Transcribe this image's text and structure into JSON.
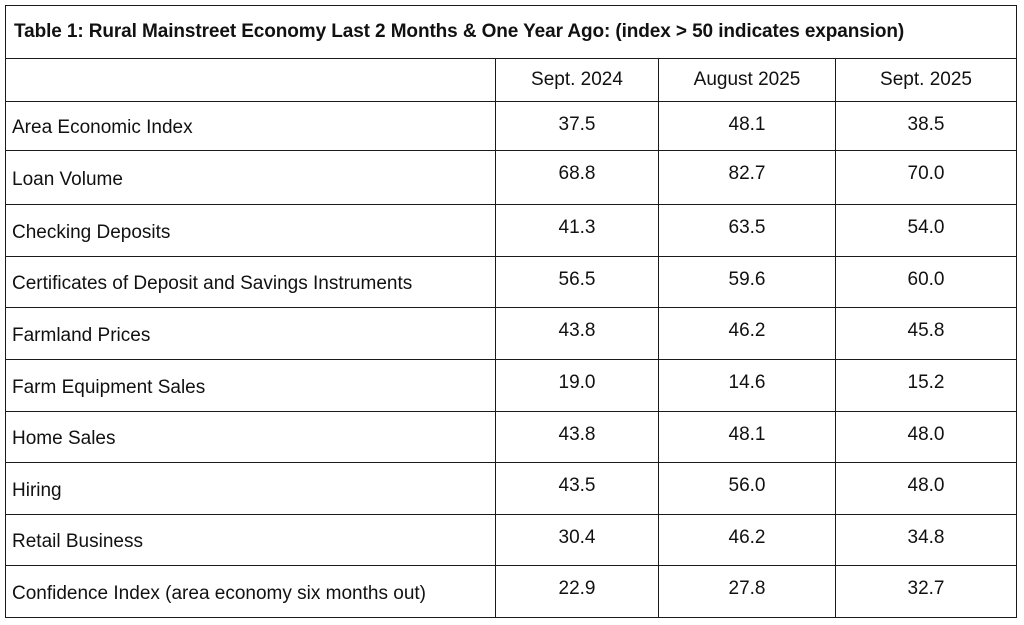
{
  "table": {
    "title": "Table 1: Rural Mainstreet Economy Last 2 Months & One Year Ago: (index > 50 indicates expansion)",
    "corner": "",
    "columns": [
      "Sept. 2024",
      "August 2025",
      "Sept. 2025"
    ],
    "rows": [
      {
        "label": "Area Economic Index",
        "values": [
          "37.5",
          "48.1",
          "38.5"
        ]
      },
      {
        "label": "Loan Volume",
        "values": [
          "68.8",
          "82.7",
          "70.0"
        ]
      },
      {
        "label": "Checking Deposits",
        "values": [
          "41.3",
          "63.5",
          "54.0"
        ]
      },
      {
        "label": "Certificates of Deposit and Savings Instruments",
        "values": [
          "56.5",
          "59.6",
          "60.0"
        ]
      },
      {
        "label": "Farmland Prices",
        "values": [
          "43.8",
          "46.2",
          "45.8"
        ]
      },
      {
        "label": "Farm Equipment Sales",
        "values": [
          "19.0",
          "14.6",
          "15.2"
        ]
      },
      {
        "label": "Home Sales",
        "values": [
          "43.8",
          "48.1",
          "48.0"
        ]
      },
      {
        "label": "Hiring",
        "values": [
          "43.5",
          "56.0",
          "48.0"
        ]
      },
      {
        "label": "Retail Business",
        "values": [
          "30.4",
          "46.2",
          "34.8"
        ]
      },
      {
        "label": "Confidence Index (area economy six months out)",
        "values": [
          "22.9",
          "27.8",
          "32.7"
        ]
      }
    ]
  }
}
